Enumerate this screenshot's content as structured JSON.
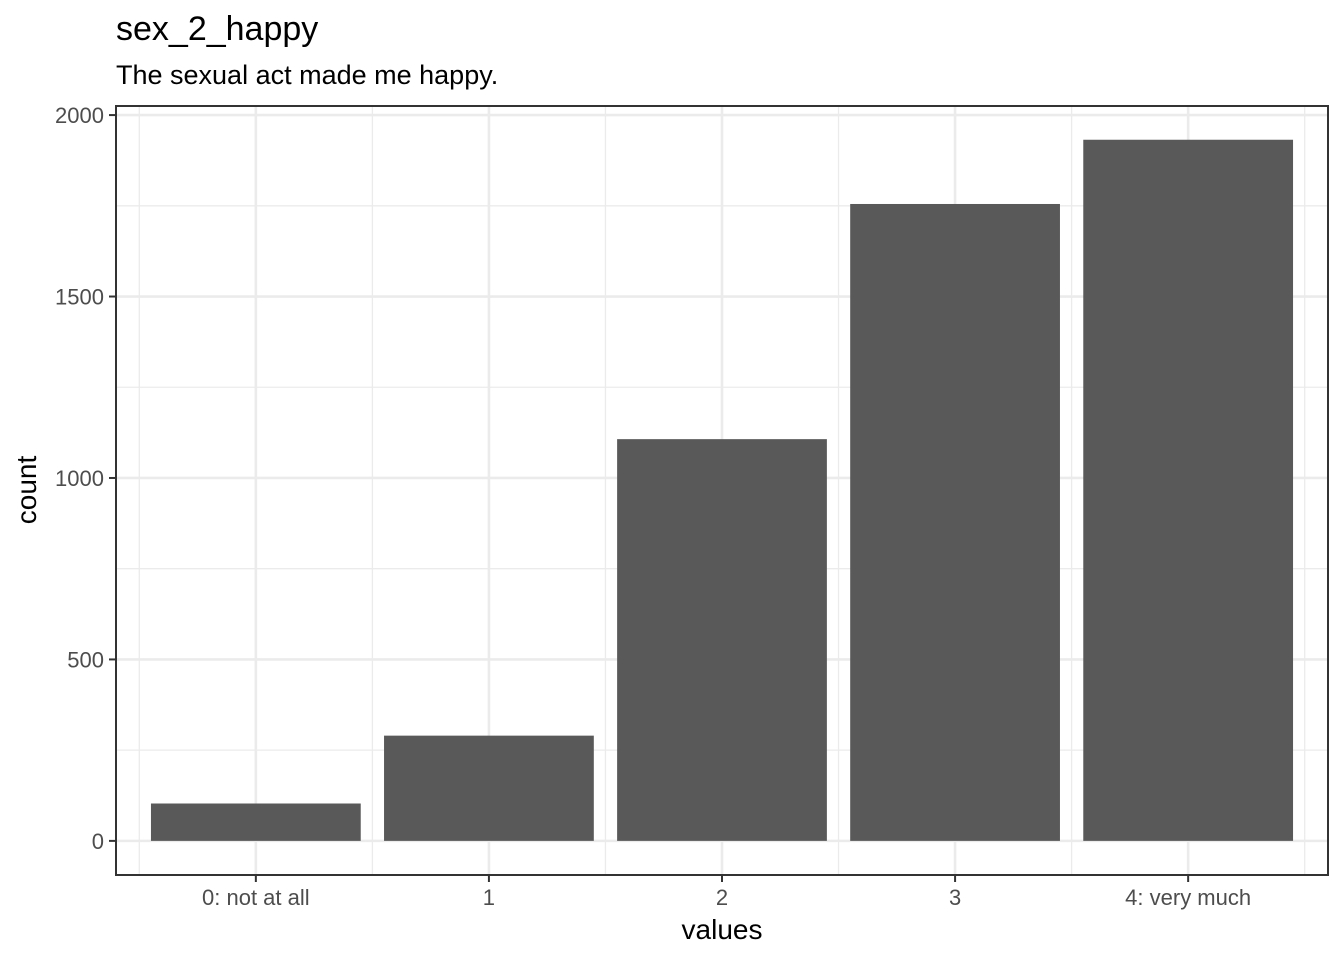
{
  "chart_data": {
    "type": "bar",
    "title": "sex_2_happy",
    "subtitle": "The sexual act made me happy.",
    "xlabel": "values",
    "ylabel": "count",
    "categories": [
      "0: not at all",
      "1",
      "2",
      "3",
      "4: very much"
    ],
    "values": [
      103,
      290,
      1107,
      1755,
      1932
    ],
    "ylim": [
      -94,
      2025
    ],
    "yticks": [
      0,
      500,
      1000,
      1500,
      2000
    ],
    "grid": true,
    "legend": "none",
    "bar_color": "#595959"
  }
}
